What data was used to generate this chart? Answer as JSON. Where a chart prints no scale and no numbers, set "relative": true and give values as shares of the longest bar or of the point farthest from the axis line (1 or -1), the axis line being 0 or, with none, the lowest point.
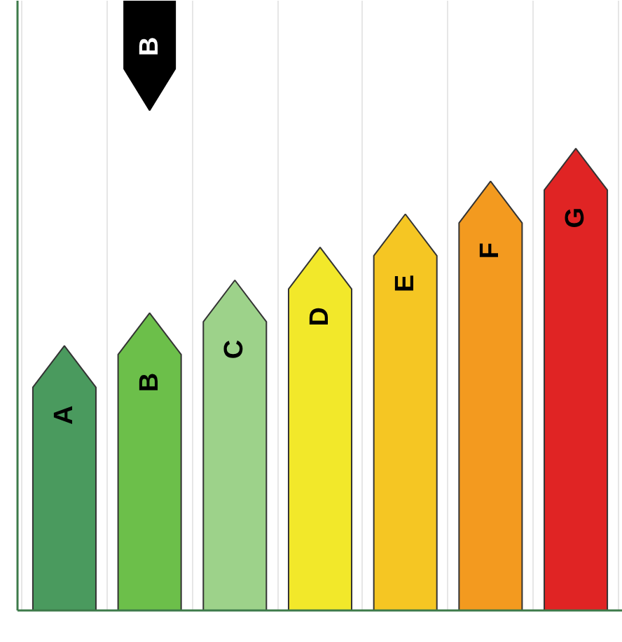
{
  "chart_data": {
    "type": "bar",
    "relative": true,
    "categories": [
      "A",
      "B",
      "C",
      "D",
      "E",
      "F",
      "G"
    ],
    "values": [
      0.573,
      0.644,
      0.715,
      0.786,
      0.858,
      0.929,
      1
    ],
    "colors": [
      "#4a9a5e",
      "#6cbf4a",
      "#9dd28a",
      "#f2e82a",
      "#f5c623",
      "#f39a1f",
      "#e02424"
    ],
    "grid": "x",
    "annotations": [
      "B"
    ]
  }
}
